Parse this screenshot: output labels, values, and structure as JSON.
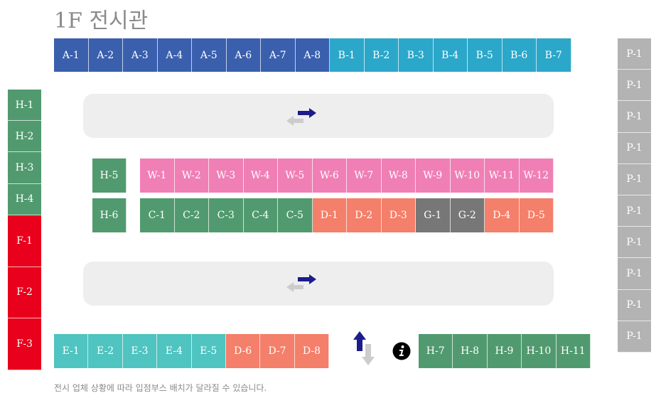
{
  "title": "1F 전시관",
  "note": "전시 업체 상황에 따라 입점부스 배치가 달라질 수 있습니다.",
  "colors": {
    "A": "#3a5fad",
    "B": "#2ba7c9",
    "P": "#b3b3b3",
    "H": "#519a6f",
    "F": "#e8001c",
    "W": "#ef7fb5",
    "C": "#519a6f",
    "D": "#f47f6a",
    "G": "#777777",
    "E": "#4fc4c0",
    "corridor": "#eeeeee",
    "arrow_active": "#1c1c8c",
    "arrow_inactive": "#cccccc"
  },
  "top_row": [
    "A-1",
    "A-2",
    "A-3",
    "A-4",
    "A-5",
    "A-6",
    "A-7",
    "A-8",
    "B-1",
    "B-2",
    "B-3",
    "B-4",
    "B-5",
    "B-6",
    "B-7"
  ],
  "p_column": [
    "P-1",
    "P-1",
    "P-1",
    "P-1",
    "P-1",
    "P-1",
    "P-1",
    "P-1",
    "P-1",
    "P-1"
  ],
  "h_column": [
    "H-1",
    "H-2",
    "H-3",
    "H-4"
  ],
  "f_column": [
    "F-1",
    "F-2",
    "F-3"
  ],
  "h5": "H-5",
  "h6": "H-6",
  "w_row": [
    "W-1",
    "W-2",
    "W-3",
    "W-4",
    "W-5",
    "W-6",
    "W-7",
    "W-8",
    "W-9",
    "W-10",
    "W-11",
    "W-12"
  ],
  "cdg_row": [
    "C-1",
    "C-2",
    "C-3",
    "C-4",
    "C-5",
    "D-1",
    "D-2",
    "D-3",
    "G-1",
    "G-2",
    "D-4",
    "D-5"
  ],
  "e_row": [
    "E-1",
    "E-2",
    "E-3",
    "E-4",
    "E-5",
    "D-6",
    "D-7",
    "D-8"
  ],
  "h_bottom": [
    "H-7",
    "H-8",
    "H-9",
    "H-10",
    "H-11"
  ],
  "icons": {
    "corridor_arrows": "swap-horizontal-icon",
    "vertical_arrows": "swap-vertical-icon",
    "info": "info-icon"
  }
}
